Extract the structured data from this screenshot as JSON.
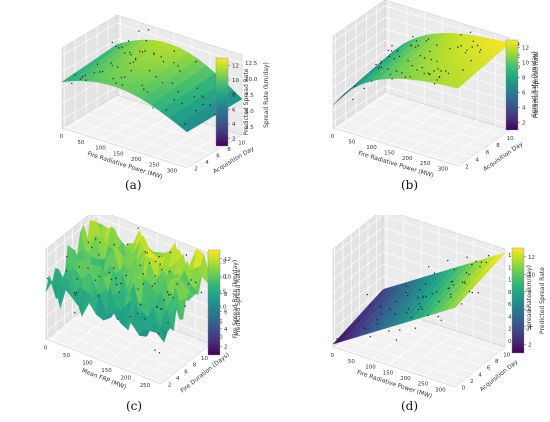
{
  "chart_data": [
    {
      "panel": "a",
      "caption": "(a)",
      "type": "surface3d",
      "xlabel": "Fire Radiative Power (MW)",
      "ylabel": "Acquisition Day",
      "zlabel": "Spread Rate (km/day)",
      "colorbar_label": "Predicted Spread Rate",
      "xticks": [
        "0",
        "50",
        "100",
        "150",
        "200",
        "250",
        "300"
      ],
      "yticks": [
        "2",
        "4",
        "6",
        "8",
        "10"
      ],
      "zticks": [
        "2.5",
        "5.0",
        "7.5",
        "10.0",
        "12.5"
      ],
      "colorbar_ticks": [
        "2",
        "4",
        "6",
        "8",
        "10",
        "12"
      ],
      "xlim": [
        0,
        330
      ],
      "ylim": [
        1,
        11
      ],
      "zlim": [
        0,
        13
      ],
      "colormap": "viridis",
      "grid": true,
      "surface_shape": "dome"
    },
    {
      "panel": "b",
      "caption": "(b)",
      "type": "surface3d",
      "xlabel": "Fire Radiative Power (MW)",
      "ylabel": "Acquisition Day",
      "zlabel": "Spread Rate (km/day)",
      "colorbar_label": "Predicted Spread Rate",
      "xticks": [
        "0",
        "50",
        "100",
        "150",
        "200",
        "250",
        "300"
      ],
      "yticks": [
        "2",
        "4",
        "6",
        "8",
        "10"
      ],
      "zticks": [
        "0",
        "2",
        "4",
        "6",
        "8",
        "10",
        "12",
        "14"
      ],
      "colorbar_ticks": [
        "2",
        "4",
        "6",
        "8",
        "10",
        "12"
      ],
      "xlim": [
        0,
        330
      ],
      "ylim": [
        1,
        11
      ],
      "zlim": [
        0,
        14
      ],
      "colormap": "viridis",
      "grid": true,
      "surface_shape": "rising-plateau"
    },
    {
      "panel": "c",
      "caption": "(c)",
      "type": "surface3d",
      "xlabel": "Mean FRP (MW)",
      "ylabel": "Fire Duration (Days)",
      "zlabel": "Fire Spread Rate (km/day)",
      "colorbar_label": "Predicted Spread Rate",
      "xticks": [
        "0",
        "50",
        "100",
        "150",
        "200",
        "250"
      ],
      "yticks": [
        "2",
        "4",
        "6",
        "8",
        "10",
        "12"
      ],
      "zticks": [
        "9.0",
        "9.5",
        "10.0",
        "10.5",
        "11.0",
        "11.5"
      ],
      "colorbar_ticks": [
        "2",
        "4",
        "6",
        "8",
        "10",
        "12"
      ],
      "xlim": [
        0,
        270
      ],
      "ylim": [
        1,
        13
      ],
      "zlim": [
        8.8,
        11.8
      ],
      "colormap": "viridis",
      "grid": true,
      "surface_shape": "jagged"
    },
    {
      "panel": "d",
      "caption": "(d)",
      "type": "surface3d",
      "xlabel": "Fire Radiative Power (MW)",
      "ylabel": "Acquisition Day",
      "zlabel": "Spread Rate (km/day)",
      "colorbar_label": "Predicted Spread Rate",
      "xticks": [
        "0",
        "50",
        "100",
        "150",
        "200",
        "250",
        "300"
      ],
      "yticks": [
        "0",
        "2",
        "4",
        "6",
        "8",
        "10"
      ],
      "zticks": [
        "0",
        "2",
        "4",
        "6",
        "8",
        "10",
        "12",
        "14"
      ],
      "colorbar_ticks": [
        "2",
        "4",
        "6",
        "8",
        "10",
        "12"
      ],
      "xlim": [
        0,
        330
      ],
      "ylim": [
        -1,
        11
      ],
      "zlim": [
        0,
        15
      ],
      "colormap": "viridis",
      "grid": true,
      "surface_shape": "plane"
    }
  ]
}
